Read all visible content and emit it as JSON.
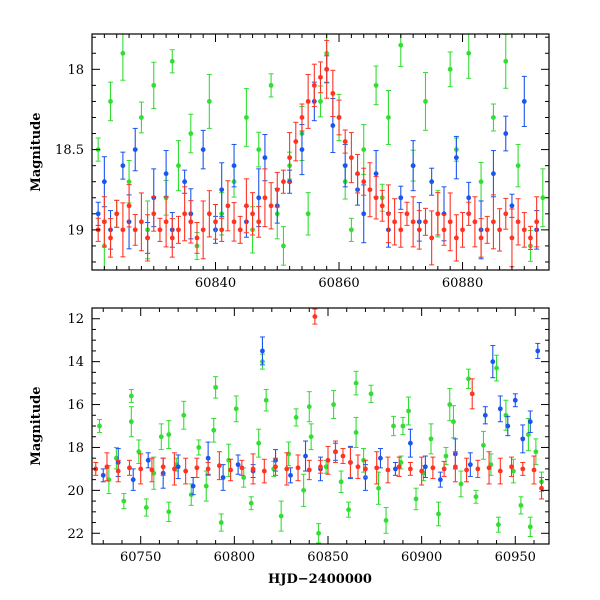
{
  "chart_data": [
    {
      "type": "scatter",
      "panel": "top",
      "xlabel": "",
      "ylabel": "Magnitude",
      "xlim": [
        60820,
        60894
      ],
      "ylim": [
        19.25,
        17.78
      ],
      "y_inverted": true,
      "x_ticks": [
        60840,
        60860,
        60880
      ],
      "y_ticks": [
        18,
        18.5,
        19
      ],
      "y_tick_labels": [
        "18",
        "18.5",
        "19"
      ],
      "series": [
        {
          "name": "green",
          "color": "#33dd33",
          "x": [
            60821,
            60822,
            60823,
            60824,
            60825,
            60826,
            60828,
            60829,
            60830,
            60832,
            60833,
            60834,
            60836,
            60837,
            60839,
            60841,
            60843,
            60845,
            60846,
            60847,
            60849,
            60850,
            60851,
            60852,
            60854,
            60855,
            60857,
            60858,
            60860,
            60861,
            60862,
            60864,
            60866,
            60867,
            60868,
            60870,
            60872,
            60874,
            60876,
            60878,
            60879,
            60881,
            60883,
            60885,
            60887,
            60889,
            60891,
            60893
          ],
          "y": [
            18.5,
            19.1,
            18.2,
            18.9,
            17.9,
            18.7,
            18.3,
            19.0,
            18.1,
            18.8,
            17.95,
            18.6,
            18.4,
            19.1,
            18.2,
            18.9,
            18.7,
            18.3,
            19.0,
            18.5,
            18.1,
            18.9,
            19.1,
            18.6,
            18.4,
            18.9,
            18.2,
            17.9,
            18.3,
            18.7,
            19.0,
            18.5,
            18.1,
            18.8,
            18.3,
            17.85,
            18.6,
            18.2,
            18.9,
            18.0,
            18.5,
            17.9,
            18.7,
            18.3,
            17.95,
            18.6,
            19.1,
            18.8
          ]
        },
        {
          "name": "blue",
          "color": "#1a55ee",
          "x": [
            60821,
            60822,
            60823,
            60825,
            60826,
            60827,
            60829,
            60830,
            60832,
            60833,
            60835,
            60836,
            60838,
            60840,
            60841,
            60843,
            60845,
            60847,
            60848,
            60850,
            60852,
            60854,
            60856,
            60858,
            60859,
            60861,
            60863,
            60864,
            60866,
            60868,
            60870,
            60872,
            60873,
            60875,
            60877,
            60879,
            60881,
            60883,
            60885,
            60887,
            60888,
            60890,
            60892
          ],
          "y": [
            18.9,
            18.7,
            19.0,
            18.6,
            18.95,
            18.5,
            19.05,
            18.8,
            18.65,
            19.0,
            18.7,
            18.9,
            18.5,
            19.0,
            18.75,
            18.6,
            18.95,
            18.8,
            18.55,
            18.85,
            18.7,
            18.5,
            18.2,
            18.0,
            18.35,
            18.6,
            18.75,
            18.9,
            18.65,
            19.0,
            18.8,
            18.6,
            18.95,
            18.7,
            18.9,
            18.55,
            18.8,
            19.0,
            18.65,
            18.4,
            18.85,
            18.2,
            19.0
          ]
        },
        {
          "name": "red",
          "color": "#ff3322",
          "x": [
            60821,
            60822,
            60823,
            60824,
            60825,
            60826,
            60827,
            60828,
            60829,
            60830,
            60831,
            60832,
            60833,
            60834,
            60835,
            60836,
            60837,
            60838,
            60839,
            60840,
            60841,
            60842,
            60843,
            60844,
            60845,
            60846,
            60847,
            60848,
            60849,
            60850,
            60851,
            60852,
            60853,
            60854,
            60855,
            60856,
            60857,
            60858,
            60859,
            60860,
            60861,
            60862,
            60863,
            60864,
            60865,
            60866,
            60867,
            60868,
            60869,
            60870,
            60871,
            60872,
            60873,
            60874,
            60875,
            60876,
            60877,
            60878,
            60879,
            60880,
            60881,
            60882,
            60883,
            60884,
            60885,
            60886,
            60887,
            60888,
            60889,
            60890,
            60891,
            60892
          ],
          "y": [
            19.0,
            18.95,
            19.05,
            18.9,
            19.0,
            18.85,
            19.0,
            18.95,
            19.05,
            18.9,
            19.0,
            18.95,
            19.05,
            19.0,
            18.9,
            18.95,
            19.05,
            19.0,
            18.9,
            18.95,
            19.0,
            18.85,
            18.95,
            19.0,
            18.85,
            18.9,
            18.95,
            18.8,
            18.85,
            18.75,
            18.7,
            18.55,
            18.45,
            18.3,
            18.2,
            18.1,
            18.05,
            18.0,
            18.15,
            18.3,
            18.45,
            18.55,
            18.65,
            18.7,
            18.75,
            18.8,
            18.85,
            18.9,
            18.95,
            19.0,
            18.9,
            18.95,
            19.0,
            18.95,
            19.05,
            18.9,
            19.0,
            18.95,
            19.05,
            19.0,
            18.9,
            18.95,
            19.05,
            19.0,
            18.95,
            19.0,
            18.9,
            19.05,
            18.95,
            19.0,
            19.05,
            18.95
          ]
        }
      ]
    },
    {
      "type": "scatter",
      "panel": "bottom",
      "xlabel": "HJD−2400000",
      "ylabel": "Magnitude",
      "xlim": [
        60724,
        60968
      ],
      "ylim": [
        22.5,
        11.5
      ],
      "y_inverted": true,
      "x_ticks": [
        60750,
        60800,
        60850,
        60900,
        60950
      ],
      "y_ticks": [
        12,
        14,
        16,
        18,
        20,
        22
      ],
      "y_tick_labels": [
        "12",
        "14",
        "16",
        "18",
        "20",
        "22"
      ],
      "series": [
        {
          "name": "green",
          "color": "#33dd33",
          "x": [
            60728,
            60733,
            60737,
            60741,
            60745,
            60749,
            60753,
            60757,
            60761,
            60765,
            60769,
            60773,
            60777,
            60781,
            60785,
            60789,
            60793,
            60797,
            60801,
            60805,
            60809,
            60813,
            60817,
            60821,
            60825,
            60829,
            60833,
            60837,
            60841,
            60845,
            60849,
            60853,
            60857,
            60861,
            60865,
            60869,
            60873,
            60877,
            60881,
            60885,
            60889,
            60893,
            60897,
            60901,
            60905,
            60909,
            60913,
            60917,
            60921,
            60925,
            60929,
            60933,
            60937,
            60941,
            60945,
            60949,
            60953,
            60957,
            60961,
            60964,
            60745,
            60765,
            60790,
            60815,
            60840,
            60865,
            60890,
            60915,
            60940,
            60958
          ],
          "y": [
            17.0,
            19.5,
            18.5,
            20.5,
            16.8,
            18.2,
            20.8,
            19.2,
            17.5,
            21.0,
            18.8,
            16.5,
            20.2,
            18.0,
            19.8,
            17.2,
            21.5,
            18.6,
            16.2,
            19.4,
            20.6,
            17.8,
            15.8,
            19.0,
            21.2,
            18.3,
            16.6,
            20.0,
            17.5,
            22.0,
            18.9,
            16.0,
            19.6,
            20.9,
            17.3,
            18.6,
            15.5,
            19.9,
            21.4,
            17.0,
            18.7,
            16.3,
            20.4,
            19.2,
            17.6,
            21.1,
            18.4,
            16.8,
            19.7,
            14.8,
            20.3,
            17.9,
            18.8,
            21.6,
            16.5,
            19.1,
            20.7,
            17.4,
            18.2,
            19.6,
            15.6,
            17.4,
            15.2,
            14.0,
            16.1,
            15.0,
            17.0,
            16.0,
            14.3,
            21.7
          ]
        },
        {
          "name": "blue",
          "color": "#1a55ee",
          "x": [
            60730,
            60738,
            60746,
            60754,
            60762,
            60770,
            60778,
            60786,
            60794,
            60802,
            60810,
            60815,
            60822,
            60830,
            60838,
            60846,
            60854,
            60862,
            60870,
            60878,
            60886,
            60894,
            60902,
            60910,
            60918,
            60926,
            60934,
            60938,
            60942,
            60946,
            60950,
            60954,
            60958,
            60962
          ],
          "y": [
            19.3,
            18.7,
            19.5,
            18.6,
            19.2,
            18.9,
            19.8,
            18.5,
            19.4,
            18.8,
            19.1,
            13.5,
            18.6,
            19.3,
            18.4,
            19.0,
            18.2,
            18.7,
            19.4,
            18.5,
            19.0,
            17.8,
            18.9,
            19.5,
            18.3,
            18.8,
            16.5,
            14.0,
            16.2,
            17.0,
            15.8,
            17.6,
            16.8,
            13.5
          ]
        },
        {
          "name": "red",
          "color": "#ff3322",
          "x": [
            60726,
            60732,
            60738,
            60744,
            60750,
            60756,
            60762,
            60768,
            60774,
            60780,
            60786,
            60792,
            60798,
            60804,
            60810,
            60816,
            60822,
            60828,
            60834,
            60840,
            60846,
            60850,
            60854,
            60858,
            60862,
            60866,
            60870,
            60876,
            60882,
            60888,
            60894,
            60900,
            60906,
            60912,
            60918,
            60924,
            60930,
            60936,
            60942,
            60948,
            60954,
            60960,
            60964,
            60843,
            60927
          ],
          "y": [
            19.0,
            18.9,
            19.1,
            18.95,
            19.0,
            19.05,
            18.9,
            19.0,
            19.1,
            18.95,
            19.0,
            18.85,
            19.05,
            18.95,
            19.0,
            19.1,
            18.9,
            19.0,
            18.95,
            19.05,
            18.9,
            18.6,
            18.2,
            18.4,
            18.7,
            18.9,
            19.0,
            18.95,
            19.05,
            18.9,
            19.0,
            19.1,
            18.95,
            19.0,
            18.9,
            19.05,
            19.0,
            18.95,
            19.1,
            18.9,
            19.0,
            19.05,
            19.9,
            11.9,
            15.5
          ]
        }
      ]
    }
  ]
}
